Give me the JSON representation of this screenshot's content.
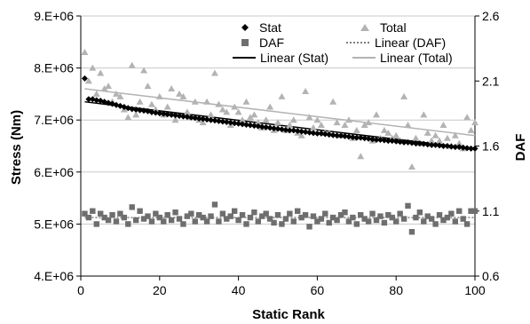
{
  "chart_data": {
    "type": "scatter",
    "xlabel": "Static Rank",
    "ylabel": "Stress (Nm)",
    "y2label": "DAF",
    "xlim": [
      0,
      100
    ],
    "ylim": [
      4000000,
      9000000
    ],
    "y2lim": [
      0.6,
      2.6
    ],
    "xticks": [
      0,
      20,
      40,
      60,
      80,
      100
    ],
    "xtick_labels": [
      "0",
      "20",
      "40",
      "60",
      "80",
      "100"
    ],
    "yticks": [
      4000000,
      5000000,
      6000000,
      7000000,
      8000000,
      9000000
    ],
    "ytick_labels": [
      "4.E+06",
      "5.E+06",
      "6.E+06",
      "7.E+06",
      "8.E+06",
      "9.E+06"
    ],
    "y2ticks": [
      0.6,
      1.1,
      1.6,
      2.1,
      2.6
    ],
    "y2tick_labels": [
      "0.6",
      "1.1",
      "1.6",
      "2.1",
      "2.6"
    ],
    "grid": {
      "x": false,
      "y": true
    },
    "legend_position": "top-right",
    "series": [
      {
        "name": "Stat",
        "axis": "left",
        "marker": "diamond",
        "color": "#000000",
        "x": [
          1,
          2,
          3,
          4,
          5,
          6,
          7,
          8,
          9,
          10,
          11,
          12,
          13,
          14,
          15,
          16,
          17,
          18,
          19,
          20,
          21,
          22,
          23,
          24,
          25,
          26,
          27,
          28,
          29,
          30,
          31,
          32,
          33,
          34,
          35,
          36,
          37,
          38,
          39,
          40,
          41,
          42,
          43,
          44,
          45,
          46,
          47,
          48,
          49,
          50,
          51,
          52,
          53,
          54,
          55,
          56,
          57,
          58,
          59,
          60,
          61,
          62,
          63,
          64,
          65,
          66,
          67,
          68,
          69,
          70,
          71,
          72,
          73,
          74,
          75,
          76,
          77,
          78,
          79,
          80,
          81,
          82,
          83,
          84,
          85,
          86,
          87,
          88,
          89,
          90,
          91,
          92,
          93,
          94,
          95,
          96,
          97,
          98,
          99,
          100
        ],
        "y": [
          7800000,
          7400000,
          7400000,
          7380000,
          7370000,
          7350000,
          7330000,
          7310000,
          7290000,
          7270000,
          7250000,
          7230000,
          7210000,
          7200000,
          7190000,
          7180000,
          7170000,
          7150000,
          7140000,
          7130000,
          7120000,
          7110000,
          7100000,
          7090000,
          7080000,
          7070000,
          7060000,
          7050000,
          7040000,
          7030000,
          7020000,
          7010000,
          7000000,
          6990000,
          6980000,
          6970000,
          6960000,
          6950000,
          6940000,
          6930000,
          6920000,
          6910000,
          6900000,
          6890000,
          6880000,
          6870000,
          6860000,
          6850000,
          6840000,
          6830000,
          6820000,
          6810000,
          6800000,
          6800000,
          6790000,
          6780000,
          6770000,
          6760000,
          6750000,
          6740000,
          6740000,
          6730000,
          6720000,
          6710000,
          6700000,
          6700000,
          6690000,
          6680000,
          6670000,
          6660000,
          6660000,
          6650000,
          6640000,
          6630000,
          6620000,
          6620000,
          6610000,
          6600000,
          6600000,
          6590000,
          6580000,
          6570000,
          6570000,
          6560000,
          6550000,
          6550000,
          6540000,
          6530000,
          6520000,
          6520000,
          6510000,
          6500000,
          6500000,
          6490000,
          6480000,
          6480000,
          6470000,
          6460000,
          6450000,
          6450000
        ]
      },
      {
        "name": "Total",
        "axis": "left",
        "marker": "triangle",
        "color": "#b3b3b3",
        "x": [
          1,
          2,
          3,
          4,
          5,
          6,
          7,
          8,
          9,
          10,
          11,
          12,
          13,
          14,
          15,
          16,
          17,
          18,
          19,
          20,
          21,
          22,
          23,
          24,
          25,
          26,
          27,
          28,
          29,
          30,
          31,
          32,
          33,
          34,
          35,
          36,
          37,
          38,
          39,
          40,
          41,
          42,
          43,
          44,
          45,
          46,
          47,
          48,
          49,
          50,
          51,
          52,
          53,
          54,
          55,
          56,
          57,
          58,
          59,
          60,
          61,
          62,
          63,
          64,
          65,
          66,
          67,
          68,
          69,
          70,
          71,
          72,
          73,
          74,
          75,
          76,
          77,
          78,
          79,
          80,
          81,
          82,
          83,
          84,
          85,
          86,
          87,
          88,
          89,
          90,
          91,
          92,
          93,
          94,
          95,
          96,
          97,
          98,
          99,
          100
        ],
        "y": [
          8300000,
          7750000,
          8000000,
          7500000,
          7900000,
          7600000,
          7650000,
          7350000,
          7500000,
          7450000,
          7200000,
          7050000,
          8050000,
          7100000,
          7350000,
          7950000,
          7650000,
          7300000,
          7200000,
          7450000,
          7100000,
          7250000,
          7600000,
          7000000,
          7500000,
          7450000,
          7150000,
          7050000,
          7350000,
          7000000,
          6950000,
          7350000,
          7100000,
          7900000,
          7300000,
          7200000,
          7150000,
          6900000,
          7250000,
          7150000,
          7000000,
          7350000,
          7050000,
          7100000,
          6950000,
          6850000,
          7000000,
          7250000,
          6800000,
          6950000,
          7450000,
          6800000,
          6900000,
          7000000,
          6750000,
          6700000,
          7550000,
          7050000,
          6850000,
          7000000,
          6900000,
          6750000,
          6750000,
          7350000,
          6950000,
          6700000,
          6900000,
          7000000,
          6650000,
          6800000,
          6300000,
          6900000,
          6950000,
          6600000,
          7100000,
          6650000,
          6800000,
          6750000,
          6650000,
          6700000,
          6600000,
          7450000,
          6900000,
          6100000,
          6650000,
          6550000,
          7100000,
          6750000,
          6600000,
          6700000,
          6600000,
          6900000,
          6650000,
          6500000,
          6700000,
          6550000,
          6450000,
          7050000,
          6800000,
          6950000
        ]
      },
      {
        "name": "DAF",
        "axis": "right",
        "marker": "square",
        "color": "#6e6e6e",
        "x": [
          1,
          2,
          3,
          4,
          5,
          6,
          7,
          8,
          9,
          10,
          11,
          12,
          13,
          14,
          15,
          16,
          17,
          18,
          19,
          20,
          21,
          22,
          23,
          24,
          25,
          26,
          27,
          28,
          29,
          30,
          31,
          32,
          33,
          34,
          35,
          36,
          37,
          38,
          39,
          40,
          41,
          42,
          43,
          44,
          45,
          46,
          47,
          48,
          49,
          50,
          51,
          52,
          53,
          54,
          55,
          56,
          57,
          58,
          59,
          60,
          61,
          62,
          63,
          64,
          65,
          66,
          67,
          68,
          69,
          70,
          71,
          72,
          73,
          74,
          75,
          76,
          77,
          78,
          79,
          80,
          81,
          82,
          83,
          84,
          85,
          86,
          87,
          88,
          89,
          90,
          91,
          92,
          93,
          94,
          95,
          96,
          97,
          98,
          99,
          100
        ],
        "y": [
          1.08,
          1.05,
          1.1,
          1.0,
          1.08,
          1.05,
          1.03,
          1.07,
          1.02,
          1.08,
          1.05,
          1.0,
          1.13,
          1.03,
          1.1,
          1.04,
          1.06,
          1.02,
          1.08,
          1.05,
          1.02,
          1.07,
          1.03,
          1.09,
          1.04,
          1.0,
          1.06,
          1.08,
          1.02,
          1.07,
          1.05,
          1.02,
          1.06,
          1.15,
          1.02,
          1.08,
          1.04,
          1.06,
          1.1,
          1.03,
          1.07,
          1.0,
          1.05,
          1.09,
          1.02,
          1.06,
          1.08,
          1.04,
          1.01,
          1.07,
          1.0,
          1.04,
          1.08,
          1.02,
          1.1,
          1.05,
          1.07,
          0.98,
          1.06,
          1.02,
          1.04,
          1.08,
          1.01,
          1.05,
          1.03,
          1.07,
          1.09,
          1.02,
          1.05,
          1.0,
          1.07,
          1.04,
          1.02,
          1.08,
          1.03,
          1.06,
          1.01,
          1.07,
          1.05,
          1.02,
          1.08,
          1.04,
          1.14,
          0.94,
          1.05,
          1.09,
          1.02,
          1.06,
          1.04,
          1.0,
          1.07,
          1.03,
          1.05,
          1.08,
          1.02,
          1.1,
          1.04,
          1.0,
          1.1,
          1.1
        ]
      }
    ],
    "trendlines": [
      {
        "name": "Linear (Stat)",
        "axis": "left",
        "style": "solid",
        "color": "#000000",
        "x": [
          1,
          100
        ],
        "y": [
          7350000,
          6450000
        ]
      },
      {
        "name": "Linear (Total)",
        "axis": "left",
        "style": "solid",
        "color": "#b3b3b3",
        "x": [
          1,
          100
        ],
        "y": [
          7600000,
          6700000
        ]
      },
      {
        "name": "Linear (DAF)",
        "axis": "right",
        "style": "dotted",
        "color": "#555555",
        "x": [
          1,
          100
        ],
        "y": [
          1.05,
          1.05
        ]
      }
    ]
  }
}
